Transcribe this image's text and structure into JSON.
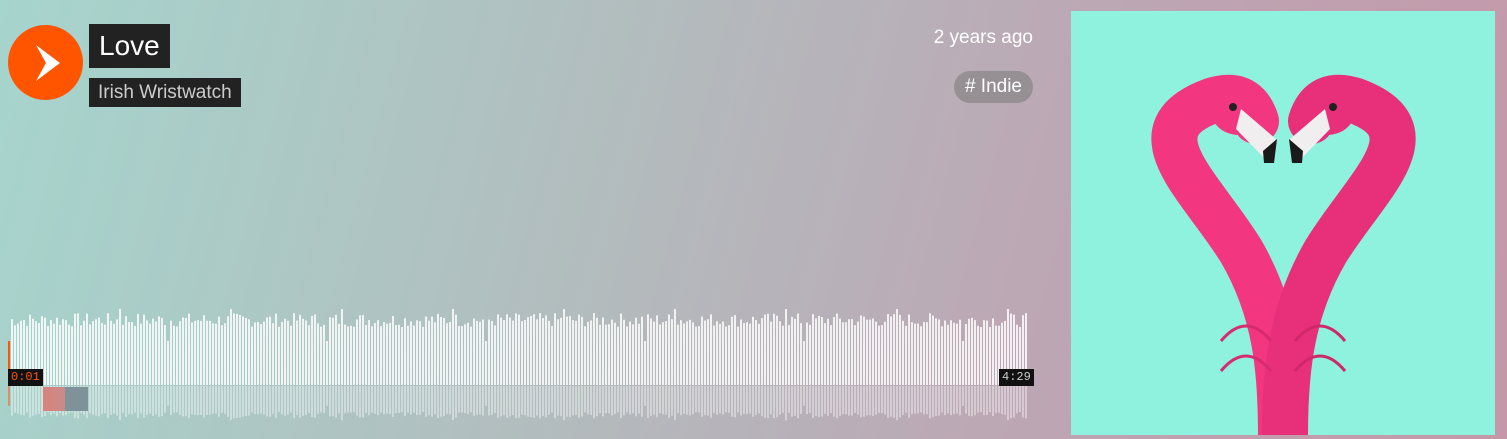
{
  "track": {
    "title": "Love",
    "artist": "Irish Wristwatch",
    "posted": "2 years ago",
    "tag": "# Indie"
  },
  "player": {
    "current_time": "0:01",
    "duration": "4:29",
    "progress": 0.004
  },
  "icons": {
    "play": "play-icon"
  },
  "colors": {
    "accent": "#ff5500"
  }
}
